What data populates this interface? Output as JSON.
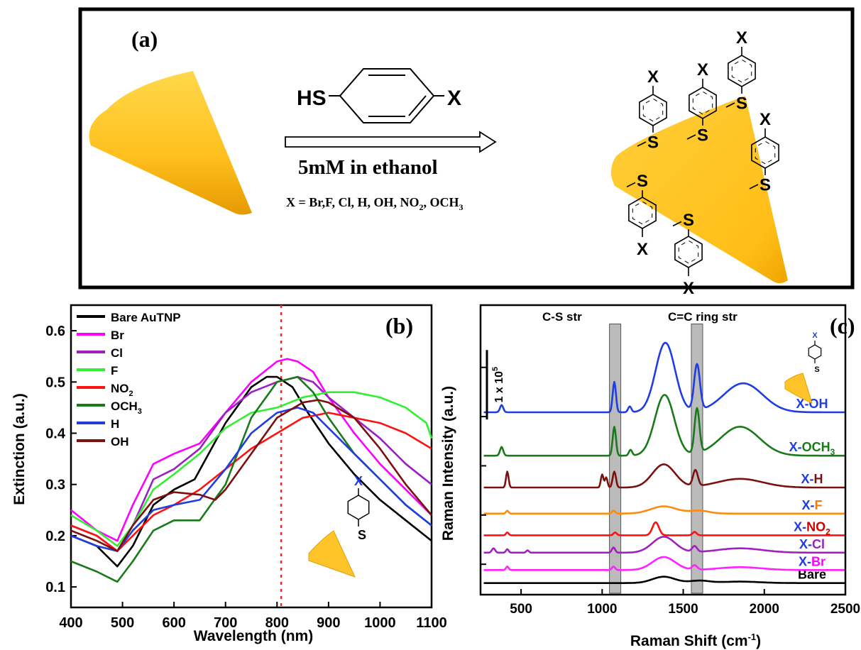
{
  "panel_a": {
    "label": "(a)",
    "reagent_left": "HS",
    "reagent_right": "X",
    "condition": "5mM in ethanol",
    "substituents_prefix": "X = Br,F, Cl, H, OH, NO",
    "substituents_sub1": "2",
    "substituents_mid": ", OCH",
    "substituents_sub2": "3",
    "x_label": "X",
    "s_label": "S"
  },
  "chart_data": [
    {
      "panel": "(b)",
      "type": "line",
      "xlabel": "Wavelength (nm)",
      "ylabel": "Extinction (a.u.)",
      "xlim": [
        400,
        1100
      ],
      "ylim": [
        0.06,
        0.65
      ],
      "xticks": [
        400,
        500,
        600,
        700,
        800,
        900,
        1000,
        1100
      ],
      "yticks": [
        0.1,
        0.2,
        0.3,
        0.4,
        0.5,
        0.6
      ],
      "marker_line_x": 808,
      "legend_position": "top-left",
      "inset_x": "X",
      "inset_s": "S",
      "series": [
        {
          "name": "Bare AuTNP",
          "color": "#000000",
          "x": [
            400,
            450,
            490,
            520,
            560,
            600,
            640,
            700,
            750,
            780,
            800,
            830,
            860,
            900,
            950,
            1000,
            1050,
            1100
          ],
          "y": [
            0.2,
            0.18,
            0.14,
            0.18,
            0.26,
            0.29,
            0.31,
            0.42,
            0.49,
            0.51,
            0.51,
            0.49,
            0.44,
            0.38,
            0.32,
            0.27,
            0.23,
            0.19
          ]
        },
        {
          "name": "Br",
          "color": "#ff00ff",
          "x": [
            400,
            450,
            490,
            520,
            560,
            600,
            650,
            700,
            750,
            800,
            820,
            840,
            870,
            900,
            950,
            1000,
            1050,
            1100
          ],
          "y": [
            0.25,
            0.21,
            0.19,
            0.26,
            0.34,
            0.36,
            0.38,
            0.44,
            0.5,
            0.54,
            0.545,
            0.54,
            0.52,
            0.47,
            0.4,
            0.34,
            0.29,
            0.24
          ]
        },
        {
          "name": "Cl",
          "color": "#9b1fc1",
          "x": [
            400,
            450,
            490,
            520,
            560,
            600,
            650,
            700,
            750,
            800,
            840,
            870,
            900,
            950,
            1000,
            1050,
            1100
          ],
          "y": [
            0.22,
            0.2,
            0.17,
            0.22,
            0.31,
            0.33,
            0.37,
            0.44,
            0.48,
            0.5,
            0.51,
            0.5,
            0.47,
            0.43,
            0.39,
            0.34,
            0.3
          ]
        },
        {
          "name": "F",
          "color": "#33ee33",
          "x": [
            400,
            450,
            490,
            520,
            560,
            600,
            650,
            700,
            750,
            800,
            850,
            900,
            950,
            1000,
            1050,
            1090,
            1100
          ],
          "y": [
            0.24,
            0.21,
            0.18,
            0.22,
            0.29,
            0.32,
            0.36,
            0.41,
            0.44,
            0.45,
            0.47,
            0.48,
            0.48,
            0.47,
            0.45,
            0.42,
            0.39
          ]
        },
        {
          "name": "NO2",
          "label_main": "NO",
          "label_sub": "2",
          "color": "#ff1111",
          "x": [
            400,
            450,
            490,
            520,
            560,
            600,
            650,
            700,
            750,
            800,
            850,
            900,
            950,
            1000,
            1050,
            1100
          ],
          "y": [
            0.22,
            0.2,
            0.17,
            0.2,
            0.24,
            0.26,
            0.29,
            0.33,
            0.37,
            0.4,
            0.43,
            0.44,
            0.43,
            0.42,
            0.4,
            0.37
          ]
        },
        {
          "name": "OCH3",
          "label_main": "OCH",
          "label_sub": "3",
          "color": "#1a7a1a",
          "x": [
            400,
            450,
            490,
            520,
            560,
            600,
            650,
            700,
            750,
            800,
            840,
            870,
            900,
            950,
            1000,
            1050,
            1100
          ],
          "y": [
            0.15,
            0.13,
            0.11,
            0.15,
            0.21,
            0.23,
            0.23,
            0.3,
            0.43,
            0.5,
            0.51,
            0.48,
            0.43,
            0.36,
            0.31,
            0.26,
            0.22
          ]
        },
        {
          "name": "H",
          "color": "#1f3de0",
          "x": [
            400,
            450,
            490,
            520,
            560,
            600,
            650,
            700,
            750,
            800,
            840,
            870,
            900,
            950,
            1000,
            1050,
            1100
          ],
          "y": [
            0.2,
            0.18,
            0.17,
            0.21,
            0.25,
            0.26,
            0.27,
            0.33,
            0.4,
            0.44,
            0.45,
            0.44,
            0.41,
            0.36,
            0.31,
            0.26,
            0.22
          ]
        },
        {
          "name": "OH",
          "color": "#7b1010",
          "x": [
            400,
            450,
            490,
            520,
            560,
            600,
            650,
            680,
            700,
            750,
            800,
            850,
            880,
            900,
            950,
            1000,
            1050,
            1100
          ],
          "y": [
            0.21,
            0.19,
            0.17,
            0.22,
            0.27,
            0.285,
            0.28,
            0.27,
            0.29,
            0.36,
            0.43,
            0.46,
            0.465,
            0.46,
            0.43,
            0.37,
            0.3,
            0.24
          ]
        }
      ]
    },
    {
      "panel": "(c)",
      "type": "line",
      "xlabel": "Raman Shift (cm",
      "xlabel_sup": "-1",
      "xlabel_end": ")",
      "ylabel": "Raman Intensity (a.u.)",
      "xlim": [
        250,
        2500
      ],
      "ylim": [
        0,
        10
      ],
      "xticks": [
        500,
        1000,
        1500,
        2000,
        2500
      ],
      "scale_bar_label": "1 x 10",
      "scale_bar_sup": "5",
      "bands": [
        {
          "label": "C-S str",
          "from": 1045,
          "to": 1115
        },
        {
          "label": "C=C ring str",
          "from": 1550,
          "to": 1620
        }
      ],
      "inset_x": "X",
      "inset_s": "S",
      "series": [
        {
          "name": "Bare",
          "label_main": "Bare",
          "label_pre": "",
          "color": "#000000",
          "offset": 0.4,
          "label_color": "#000000"
        },
        {
          "name": "X-Br",
          "label_pre": "X-",
          "label_main": "Br",
          "color": "#ff22ff",
          "offset": 0.85,
          "label_color": "#ff00ff"
        },
        {
          "name": "X-Cl",
          "label_pre": "X-",
          "label_main": "Cl",
          "color": "#a020c0",
          "offset": 1.45,
          "label_color": "#9b1fc1"
        },
        {
          "name": "X-NO2",
          "label_pre": "X-",
          "label_main": "NO",
          "label_sub": "2",
          "color": "#ff1111",
          "offset": 2.05,
          "label_color": "#cc0000"
        },
        {
          "name": "X-F",
          "label_pre": "X-",
          "label_main": "F",
          "color": "#ff8a10",
          "offset": 2.8,
          "label_color": "#ff7a00"
        },
        {
          "name": "X-H",
          "label_pre": "X-",
          "label_main": "H",
          "color": "#7b1010",
          "offset": 3.7,
          "label_color": "#7b1010"
        },
        {
          "name": "X-OCH3",
          "label_pre": "X-",
          "label_main": "OCH",
          "label_sub": "3",
          "color": "#1a7a1a",
          "offset": 4.8,
          "label_color": "#1a7a1a"
        },
        {
          "name": "X-OH",
          "label_pre": "X-",
          "label_main": "OH",
          "color": "#1f3de0",
          "offset": 6.3,
          "label_color": "#1f3de0"
        }
      ]
    }
  ]
}
